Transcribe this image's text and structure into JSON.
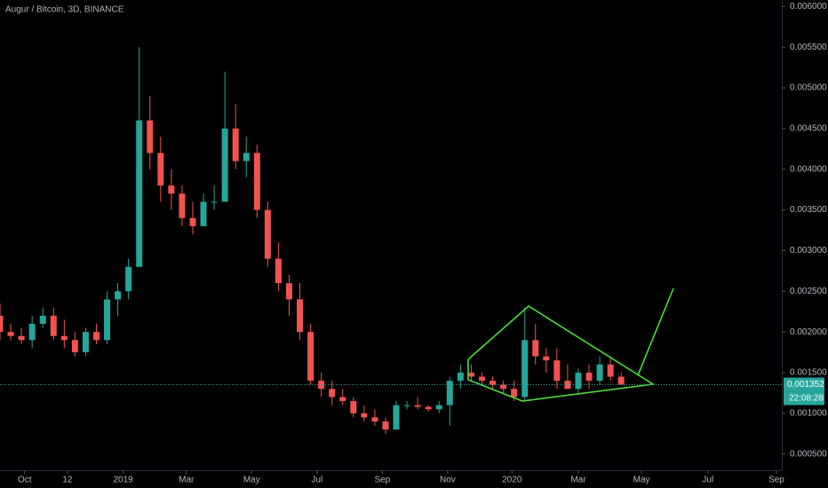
{
  "chart_data": {
    "type": "candlestick",
    "title": "Augur / Bitcoin, 3D, BINANCE",
    "x": [
      0,
      1,
      2,
      3,
      4,
      5,
      6,
      7,
      8,
      9,
      10,
      11,
      12,
      13,
      14,
      15,
      16,
      17,
      18,
      19,
      20,
      21,
      22,
      23,
      24,
      25,
      26,
      27,
      28,
      29,
      30,
      31,
      32,
      33,
      34,
      35,
      36,
      37,
      38,
      39,
      40,
      41,
      42,
      43,
      44,
      45,
      46,
      47,
      48,
      49,
      50,
      51,
      52,
      53,
      54,
      55,
      56,
      57,
      58
    ],
    "open": [
      0.0022,
      0.002,
      0.00195,
      0.0019,
      0.0021,
      0.0022,
      0.00195,
      0.0019,
      0.00175,
      0.002,
      0.0019,
      0.0024,
      0.0025,
      0.0028,
      0.0046,
      0.0042,
      0.0038,
      0.0037,
      0.0034,
      0.0033,
      0.0036,
      0.0036,
      0.0045,
      0.0041,
      0.0042,
      0.0035,
      0.0029,
      0.0026,
      0.0024,
      0.002,
      0.0014,
      0.0013,
      0.0012,
      0.00115,
      0.001,
      0.00095,
      0.0009,
      0.0008,
      0.0011,
      0.0011,
      0.00108,
      0.00105,
      0.0011,
      0.0014,
      0.0015,
      0.00145,
      0.0014,
      0.00135,
      0.0013,
      0.0012,
      0.0019,
      0.0017,
      0.00165,
      0.0014,
      0.0013,
      0.0015,
      0.0014,
      0.0016,
      0.00145
    ],
    "high": [
      0.00235,
      0.0021,
      0.00205,
      0.0022,
      0.0023,
      0.0023,
      0.00215,
      0.002,
      0.00205,
      0.0021,
      0.0025,
      0.0026,
      0.0029,
      0.0055,
      0.0049,
      0.0044,
      0.004,
      0.0038,
      0.0036,
      0.0037,
      0.0038,
      0.0052,
      0.0048,
      0.0044,
      0.0043,
      0.0036,
      0.0031,
      0.0027,
      0.0026,
      0.0021,
      0.0015,
      0.0014,
      0.0013,
      0.0012,
      0.0011,
      0.00105,
      0.00095,
      0.00115,
      0.00115,
      0.0012,
      0.0011,
      0.00115,
      0.00145,
      0.0016,
      0.0016,
      0.0015,
      0.00145,
      0.0014,
      0.0014,
      0.0023,
      0.0021,
      0.0018,
      0.0018,
      0.0016,
      0.00155,
      0.0016,
      0.0017,
      0.0017,
      0.0015
    ],
    "low": [
      0.0019,
      0.0019,
      0.00185,
      0.0018,
      0.00205,
      0.0019,
      0.0018,
      0.0017,
      0.0017,
      0.00185,
      0.00185,
      0.0022,
      0.0024,
      0.0028,
      0.004,
      0.0036,
      0.0035,
      0.0033,
      0.0032,
      0.0033,
      0.0035,
      0.0036,
      0.004,
      0.0039,
      0.0034,
      0.0028,
      0.0025,
      0.0022,
      0.0019,
      0.00135,
      0.0012,
      0.0011,
      0.0011,
      0.00095,
      0.0009,
      0.00085,
      0.00075,
      0.0008,
      0.00105,
      0.00105,
      0.00102,
      0.001,
      0.00085,
      0.0013,
      0.0014,
      0.00135,
      0.0013,
      0.00125,
      0.00115,
      0.00115,
      0.0016,
      0.0015,
      0.0013,
      0.0013,
      0.00125,
      0.0013,
      0.00135,
      0.0014,
      0.00135
    ],
    "close": [
      0.002,
      0.00195,
      0.0019,
      0.0021,
      0.0022,
      0.00195,
      0.0019,
      0.00175,
      0.002,
      0.0019,
      0.0024,
      0.0025,
      0.0028,
      0.0046,
      0.0042,
      0.0038,
      0.0037,
      0.0034,
      0.0033,
      0.0036,
      0.0036,
      0.0045,
      0.0041,
      0.0042,
      0.0035,
      0.0029,
      0.0026,
      0.0024,
      0.002,
      0.0014,
      0.0013,
      0.0012,
      0.00115,
      0.001,
      0.00095,
      0.0009,
      0.0008,
      0.0011,
      0.0011,
      0.00108,
      0.00105,
      0.0011,
      0.0014,
      0.0015,
      0.00145,
      0.0014,
      0.00135,
      0.0013,
      0.0012,
      0.0019,
      0.0017,
      0.00165,
      0.0014,
      0.0013,
      0.0015,
      0.0014,
      0.0016,
      0.00145,
      0.001352
    ],
    "up_color": "#26a69a",
    "down_color": "#ef5350",
    "last_price": 0.001352,
    "countdown": "22:08:28",
    "xlim": [
      0,
      73
    ],
    "xticks": [
      {
        "value": 2.3,
        "label": "Oct"
      },
      {
        "value": 6.3,
        "label": "12"
      },
      {
        "value": 11.5,
        "label": "2019"
      },
      {
        "value": 17.4,
        "label": "Mar"
      },
      {
        "value": 23.5,
        "label": "May"
      },
      {
        "value": 29.6,
        "label": "Jul"
      },
      {
        "value": 35.7,
        "label": "Sep"
      },
      {
        "value": 41.8,
        "label": "Nov"
      },
      {
        "value": 47.8,
        "label": "2020"
      },
      {
        "value": 54.0,
        "label": "Mar"
      },
      {
        "value": 59.9,
        "label": "May"
      },
      {
        "value": 66.1,
        "label": "Jul"
      },
      {
        "value": 72.5,
        "label": "Sep"
      }
    ],
    "ylim": [
      0.0003,
      0.00608
    ],
    "yticks": [
      {
        "value": 0.0005,
        "label": "0.000500"
      },
      {
        "value": 0.001,
        "label": "0.001000"
      },
      {
        "value": 0.0015,
        "label": "0.001500"
      },
      {
        "value": 0.002,
        "label": "0.002000"
      },
      {
        "value": 0.0025,
        "label": "0.002500"
      },
      {
        "value": 0.003,
        "label": "0.003000"
      },
      {
        "value": 0.0035,
        "label": "0.003500"
      },
      {
        "value": 0.004,
        "label": "0.004000"
      },
      {
        "value": 0.0045,
        "label": "0.004500"
      },
      {
        "value": 0.005,
        "label": "0.005000"
      },
      {
        "value": 0.0055,
        "label": "0.005500"
      },
      {
        "value": 0.006,
        "label": "0.006000"
      }
    ]
  }
}
